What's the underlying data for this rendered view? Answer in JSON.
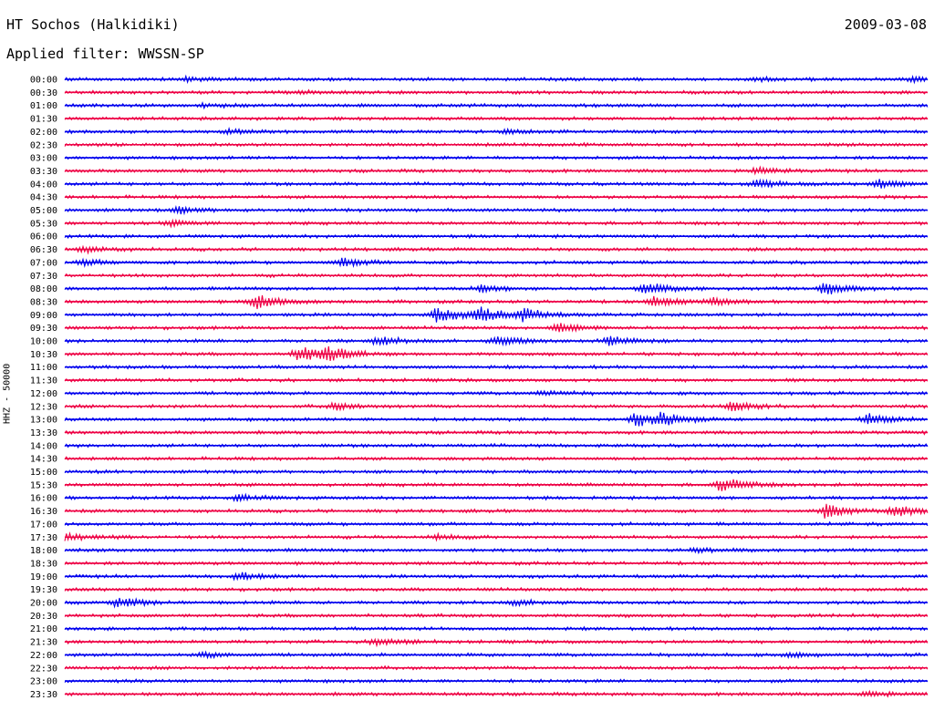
{
  "header": {
    "title": "HT Sochos (Halkidiki)",
    "date": "2009-03-08",
    "filter": "Applied filter: WWSSN-SP"
  },
  "chart_data": {
    "type": "line",
    "title": "HT Sochos (Halkidiki)",
    "subtitle": "Applied filter: WWSSN-SP",
    "date": "2009-03-08",
    "ylabel": "HHZ - 50000",
    "xlabel": "",
    "grid": false,
    "legend": "none",
    "colors": {
      "even": "#0000ee",
      "odd": "#ee0044",
      "text": "#000000",
      "background": "#ffffff"
    },
    "row_labels": [
      "00:00",
      "00:30",
      "01:00",
      "01:30",
      "02:00",
      "02:30",
      "03:00",
      "03:30",
      "04:00",
      "04:30",
      "05:00",
      "05:30",
      "06:00",
      "06:30",
      "07:00",
      "07:30",
      "08:00",
      "08:30",
      "09:00",
      "09:30",
      "10:00",
      "10:30",
      "11:00",
      "11:30",
      "12:00",
      "12:30",
      "13:00",
      "13:30",
      "14:00",
      "14:30",
      "15:00",
      "15:30",
      "16:00",
      "16:30",
      "17:00",
      "17:30",
      "18:00",
      "18:30",
      "19:00",
      "19:30",
      "20:00",
      "20:30",
      "21:00",
      "21:30",
      "22:00",
      "22:30",
      "23:00",
      "23:30"
    ],
    "events": [
      {
        "row": "00:00",
        "t": 0.14,
        "amp": 0.25
      },
      {
        "row": "00:00",
        "t": 0.8,
        "amp": 0.2
      },
      {
        "row": "00:00",
        "t": 0.98,
        "amp": 0.3
      },
      {
        "row": "00:30",
        "t": 0.27,
        "amp": 0.2
      },
      {
        "row": "01:00",
        "t": 0.16,
        "amp": 0.2
      },
      {
        "row": "02:00",
        "t": 0.19,
        "amp": 0.3
      },
      {
        "row": "02:00",
        "t": 0.51,
        "amp": 0.2
      },
      {
        "row": "03:30",
        "t": 0.8,
        "amp": 0.35
      },
      {
        "row": "04:00",
        "t": 0.8,
        "amp": 0.6
      },
      {
        "row": "04:00",
        "t": 0.94,
        "amp": 0.5
      },
      {
        "row": "05:00",
        "t": 0.13,
        "amp": 0.4
      },
      {
        "row": "05:30",
        "t": 0.12,
        "amp": 0.3
      },
      {
        "row": "06:30",
        "t": 0.02,
        "amp": 0.35
      },
      {
        "row": "07:00",
        "t": 0.02,
        "amp": 0.35
      },
      {
        "row": "07:00",
        "t": 0.32,
        "amp": 0.5
      },
      {
        "row": "08:00",
        "t": 0.48,
        "amp": 0.4
      },
      {
        "row": "08:00",
        "t": 0.67,
        "amp": 0.8
      },
      {
        "row": "08:00",
        "t": 0.88,
        "amp": 0.9
      },
      {
        "row": "08:30",
        "t": 0.22,
        "amp": 0.9
      },
      {
        "row": "08:30",
        "t": 0.68,
        "amp": 0.6
      },
      {
        "row": "08:30",
        "t": 0.75,
        "amp": 0.4
      },
      {
        "row": "09:00",
        "t": 0.43,
        "amp": 0.9
      },
      {
        "row": "09:00",
        "t": 0.48,
        "amp": 0.9
      },
      {
        "row": "09:00",
        "t": 0.53,
        "amp": 0.7
      },
      {
        "row": "09:30",
        "t": 0.57,
        "amp": 0.6
      },
      {
        "row": "10:00",
        "t": 0.36,
        "amp": 0.5
      },
      {
        "row": "10:00",
        "t": 0.5,
        "amp": 0.6
      },
      {
        "row": "10:00",
        "t": 0.63,
        "amp": 0.6
      },
      {
        "row": "10:30",
        "t": 0.27,
        "amp": 1.0
      },
      {
        "row": "10:30",
        "t": 0.3,
        "amp": 0.8
      },
      {
        "row": "12:00",
        "t": 0.55,
        "amp": 0.3
      },
      {
        "row": "12:30",
        "t": 0.31,
        "amp": 0.4
      },
      {
        "row": "12:30",
        "t": 0.77,
        "amp": 0.6
      },
      {
        "row": "13:00",
        "t": 0.66,
        "amp": 0.9
      },
      {
        "row": "13:00",
        "t": 0.69,
        "amp": 0.7
      },
      {
        "row": "13:00",
        "t": 0.93,
        "amp": 0.8
      },
      {
        "row": "15:30",
        "t": 0.76,
        "amp": 0.9
      },
      {
        "row": "16:00",
        "t": 0.2,
        "amp": 0.4
      },
      {
        "row": "16:30",
        "t": 0.88,
        "amp": 0.8
      },
      {
        "row": "16:30",
        "t": 0.96,
        "amp": 0.7
      },
      {
        "row": "17:30",
        "t": 0.0,
        "amp": 0.4
      },
      {
        "row": "17:30",
        "t": 0.43,
        "amp": 0.3
      },
      {
        "row": "18:00",
        "t": 0.73,
        "amp": 0.3
      },
      {
        "row": "19:00",
        "t": 0.2,
        "amp": 0.5
      },
      {
        "row": "20:00",
        "t": 0.06,
        "amp": 0.6
      },
      {
        "row": "20:00",
        "t": 0.52,
        "amp": 0.3
      },
      {
        "row": "21:30",
        "t": 0.36,
        "amp": 0.5
      },
      {
        "row": "22:00",
        "t": 0.16,
        "amp": 0.3
      },
      {
        "row": "22:00",
        "t": 0.84,
        "amp": 0.3
      },
      {
        "row": "23:30",
        "t": 0.93,
        "amp": 0.3
      }
    ]
  }
}
